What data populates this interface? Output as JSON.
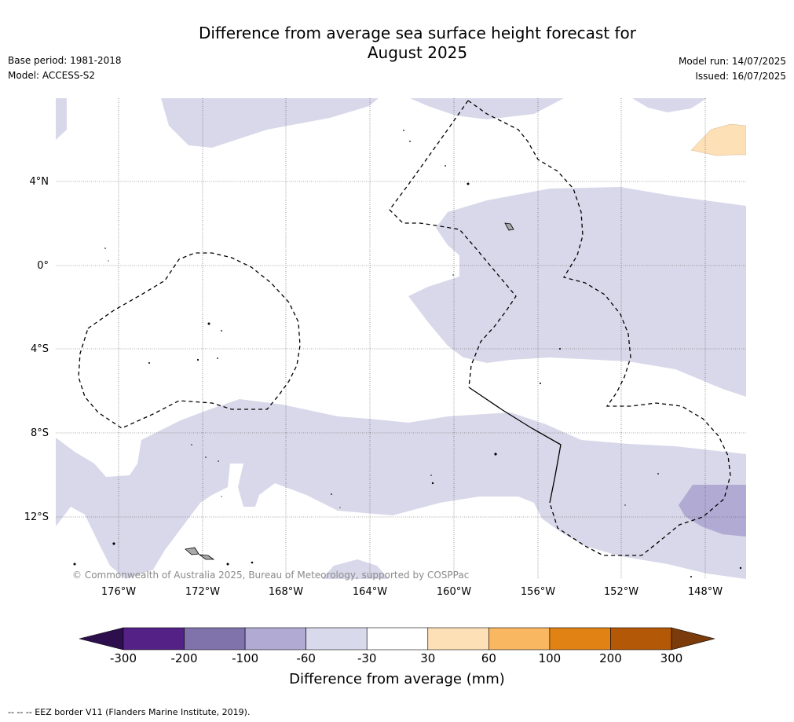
{
  "header": {
    "title_line1": "Difference from average sea surface height forecast for",
    "title_line2": "August 2025",
    "base_period": "Base period: 1981-2018",
    "model": "Model: ACCESS-S2",
    "model_run": "Model run: 14/07/2025",
    "issued": "Issued: 16/07/2025"
  },
  "map": {
    "lat_labels": [
      "4°N",
      "0°",
      "4°S",
      "8°S",
      "12°S"
    ],
    "lon_labels": [
      "176°W",
      "172°W",
      "168°W",
      "164°W",
      "160°W",
      "156°W",
      "152°W",
      "148°W"
    ],
    "copyright": "© Commonwealth of Australia 2025, Bureau of Meteorology, supported by COSPPac",
    "colors": {
      "anomaly_minus_30_to_minus_60": "#d8d8ea",
      "anomaly_minus_60_to_minus_100": "#b1aad3",
      "anomaly_30_to_60": "#fde0b6",
      "land": "#a0a0a0",
      "eez_border": "#000000"
    }
  },
  "colorbar": {
    "ticks": [
      "-300",
      "-200",
      "-100",
      "-60",
      "-30",
      "30",
      "60",
      "100",
      "200",
      "300"
    ],
    "colors": [
      "#2e0f4e",
      "#542286",
      "#8073ac",
      "#b1aad3",
      "#d8d9ea",
      "#ffffff",
      "#fde0b6",
      "#f9b761",
      "#e08214",
      "#b35806",
      "#7b3b0b"
    ],
    "label": "Difference from average (mm)"
  },
  "footnote": "--  --  -- EEZ border V11 (Flanders Marine Institute, 2019)."
}
